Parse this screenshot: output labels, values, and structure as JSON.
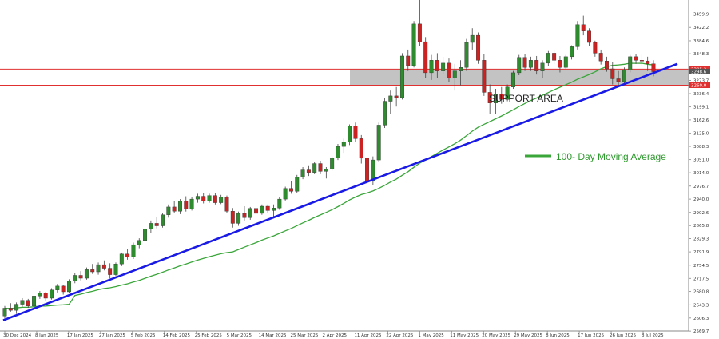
{
  "chart_data": {
    "type": "candlestick",
    "title": "",
    "xlabel": "",
    "ylabel": "",
    "ylim": [
      2570,
      3490
    ],
    "y_ticks": [
      3459.9,
      3422.2,
      3384.6,
      3348.3,
      3311.0,
      3273.7,
      3236.4,
      3199.1,
      3162.6,
      3125.0,
      3088.3,
      3051.0,
      3014.0,
      2976.7,
      2940.0,
      2902.6,
      2865.8,
      2829.3,
      2791.9,
      2754.5,
      2717.5,
      2680.8,
      2643.3,
      2606.3,
      2569.7
    ],
    "x_ticks": [
      "30 Dec 2024",
      "8 Jan 2025",
      "17 Jan 2025",
      "27 Jan 2025",
      "5 Feb 2025",
      "14 Feb 2025",
      "25 Feb 2025",
      "5 Mar 2025",
      "14 Mar 2025",
      "25 Mar 2025",
      "2 Apr 2025",
      "11 Apr 2025",
      "22 Apr 2025",
      "1 May 2025",
      "11 May 2025",
      "20 May 2025",
      "29 May 2025",
      "8 Jun 2025",
      "17 Jun 2025",
      "26 Jun 2025",
      "8 Jul 2025"
    ],
    "resistance_level": 3305.2,
    "support_level": 3260.0,
    "last_price": 3298.6,
    "colors": {
      "up": "#2e8b2e",
      "down": "#cc2222",
      "trendline": "#1a1ae6",
      "moving_average": "#3aa63a",
      "levels": "#e03030",
      "zone": "#b8b8b8"
    },
    "candles": [
      [
        2612,
        2640,
        2605,
        2634
      ],
      [
        2634,
        2648,
        2624,
        2628
      ],
      [
        2628,
        2650,
        2618,
        2645
      ],
      [
        2645,
        2662,
        2638,
        2656
      ],
      [
        2656,
        2660,
        2635,
        2640
      ],
      [
        2640,
        2672,
        2636,
        2668
      ],
      [
        2668,
        2682,
        2660,
        2676
      ],
      [
        2676,
        2680,
        2655,
        2662
      ],
      [
        2662,
        2690,
        2658,
        2685
      ],
      [
        2685,
        2702,
        2678,
        2696
      ],
      [
        2696,
        2700,
        2672,
        2680
      ],
      [
        2680,
        2715,
        2676,
        2710
      ],
      [
        2710,
        2732,
        2704,
        2726
      ],
      [
        2726,
        2738,
        2712,
        2718
      ],
      [
        2718,
        2748,
        2714,
        2742
      ],
      [
        2742,
        2758,
        2730,
        2736
      ],
      [
        2736,
        2762,
        2728,
        2756
      ],
      [
        2756,
        2768,
        2740,
        2746
      ],
      [
        2746,
        2760,
        2718,
        2728
      ],
      [
        2728,
        2762,
        2724,
        2758
      ],
      [
        2758,
        2790,
        2752,
        2786
      ],
      [
        2786,
        2800,
        2770,
        2778
      ],
      [
        2778,
        2818,
        2772,
        2812
      ],
      [
        2812,
        2830,
        2802,
        2824
      ],
      [
        2824,
        2860,
        2818,
        2856
      ],
      [
        2856,
        2880,
        2845,
        2872
      ],
      [
        2872,
        2890,
        2858,
        2865
      ],
      [
        2865,
        2900,
        2860,
        2896
      ],
      [
        2896,
        2925,
        2888,
        2918
      ],
      [
        2918,
        2935,
        2900,
        2906
      ],
      [
        2906,
        2940,
        2898,
        2935
      ],
      [
        2935,
        2948,
        2905,
        2912
      ],
      [
        2912,
        2945,
        2908,
        2940
      ],
      [
        2940,
        2955,
        2930,
        2948
      ],
      [
        2948,
        2958,
        2928,
        2934
      ],
      [
        2934,
        2955,
        2930,
        2950
      ],
      [
        2950,
        2956,
        2925,
        2930
      ],
      [
        2930,
        2952,
        2926,
        2946
      ],
      [
        2946,
        2950,
        2900,
        2906
      ],
      [
        2906,
        2915,
        2860,
        2872
      ],
      [
        2872,
        2905,
        2865,
        2900
      ],
      [
        2900,
        2920,
        2880,
        2888
      ],
      [
        2888,
        2918,
        2882,
        2914
      ],
      [
        2914,
        2925,
        2895,
        2900
      ],
      [
        2900,
        2925,
        2896,
        2920
      ],
      [
        2920,
        2925,
        2900,
        2908
      ],
      [
        2908,
        2925,
        2890,
        2915
      ],
      [
        2915,
        2945,
        2910,
        2940
      ],
      [
        2940,
        2975,
        2936,
        2970
      ],
      [
        2970,
        2990,
        2955,
        2962
      ],
      [
        2962,
        3008,
        2958,
        3002
      ],
      [
        3002,
        3030,
        2996,
        3022
      ],
      [
        3022,
        3035,
        3005,
        3015
      ],
      [
        3015,
        3045,
        3010,
        3040
      ],
      [
        3040,
        3048,
        3010,
        3018
      ],
      [
        3018,
        3030,
        2998,
        3025
      ],
      [
        3025,
        3060,
        3020,
        3056
      ],
      [
        3056,
        3095,
        3050,
        3088
      ],
      [
        3088,
        3110,
        3070,
        3100
      ],
      [
        3100,
        3150,
        3092,
        3145
      ],
      [
        3145,
        3155,
        3100,
        3110
      ],
      [
        3110,
        3120,
        3040,
        3055
      ],
      [
        3055,
        3070,
        2970,
        2990
      ],
      [
        2990,
        3060,
        2980,
        3050
      ],
      [
        3050,
        3155,
        3045,
        3148
      ],
      [
        3148,
        3225,
        3140,
        3215
      ],
      [
        3215,
        3245,
        3180,
        3230
      ],
      [
        3230,
        3255,
        3200,
        3225
      ],
      [
        3225,
        3350,
        3220,
        3342
      ],
      [
        3342,
        3360,
        3300,
        3315
      ],
      [
        3315,
        3440,
        3310,
        3432
      ],
      [
        3432,
        3500,
        3370,
        3382
      ],
      [
        3382,
        3395,
        3280,
        3295
      ],
      [
        3295,
        3345,
        3275,
        3330
      ],
      [
        3330,
        3350,
        3280,
        3300
      ],
      [
        3300,
        3340,
        3290,
        3322
      ],
      [
        3322,
        3335,
        3270,
        3280
      ],
      [
        3280,
        3320,
        3245,
        3300
      ],
      [
        3300,
        3330,
        3260,
        3310
      ],
      [
        3310,
        3390,
        3300,
        3380
      ],
      [
        3380,
        3420,
        3360,
        3400
      ],
      [
        3400,
        3408,
        3320,
        3330
      ],
      [
        3330,
        3348,
        3230,
        3240
      ],
      [
        3240,
        3262,
        3180,
        3210
      ],
      [
        3210,
        3250,
        3180,
        3235
      ],
      [
        3235,
        3255,
        3208,
        3220
      ],
      [
        3220,
        3262,
        3215,
        3255
      ],
      [
        3255,
        3300,
        3250,
        3295
      ],
      [
        3295,
        3345,
        3288,
        3338
      ],
      [
        3338,
        3348,
        3300,
        3310
      ],
      [
        3310,
        3340,
        3300,
        3330
      ],
      [
        3330,
        3342,
        3290,
        3300
      ],
      [
        3300,
        3330,
        3280,
        3322
      ],
      [
        3322,
        3356,
        3315,
        3350
      ],
      [
        3350,
        3360,
        3320,
        3330
      ],
      [
        3330,
        3342,
        3296,
        3310
      ],
      [
        3310,
        3345,
        3305,
        3340
      ],
      [
        3340,
        3372,
        3332,
        3368
      ],
      [
        3368,
        3440,
        3360,
        3430
      ],
      [
        3430,
        3455,
        3400,
        3412
      ],
      [
        3412,
        3420,
        3370,
        3380
      ],
      [
        3380,
        3385,
        3340,
        3350
      ],
      [
        3350,
        3360,
        3318,
        3328
      ],
      [
        3328,
        3340,
        3298,
        3306
      ],
      [
        3306,
        3325,
        3262,
        3278
      ],
      [
        3278,
        3300,
        3256,
        3270
      ],
      [
        3270,
        3310,
        3265,
        3302
      ],
      [
        3302,
        3345,
        3296,
        3340
      ],
      [
        3340,
        3348,
        3320,
        3330
      ],
      [
        3330,
        3345,
        3315,
        3328
      ],
      [
        3328,
        3340,
        3300,
        3320
      ],
      [
        3320,
        3330,
        3285,
        3298
      ]
    ]
  },
  "annotations": {
    "support_area": "SUPPORT AREA",
    "ma_label": "100- Day Moving Average",
    "level_tag_upper": "3305.2",
    "level_tag_lower": "3260.0",
    "price_tag": "3298.6"
  }
}
